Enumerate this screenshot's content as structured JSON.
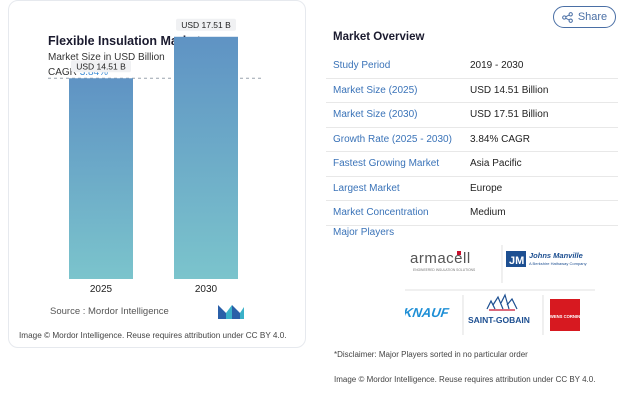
{
  "share": {
    "label": "Share",
    "icon": "share-icon"
  },
  "chart": {
    "title": "Flexible Insulation Market",
    "subtitle": "Market Size in USD Billion",
    "cagr_label": "CAGR",
    "cagr_value": "3.84%",
    "source": "Source :  Mordor Intelligence",
    "copyright": "Image © Mordor Intelligence. Reuse requires attribution under CC BY 4.0."
  },
  "chart_data": {
    "type": "bar",
    "categories": [
      "2025",
      "2030"
    ],
    "values": [
      14.51,
      17.51
    ],
    "data_labels": [
      "USD 14.51 B",
      "USD 17.51 B"
    ],
    "title": "Flexible Insulation Market",
    "subtitle": "Market Size in USD Billion",
    "ylim": [
      0,
      18
    ],
    "colors": {
      "bar_top": "#5f93c4",
      "bar_bottom": "#7bc4cc"
    },
    "grid": false,
    "reference_line": "dashed line at 2025 value"
  },
  "overview": {
    "title": "Market Overview",
    "rows": [
      {
        "key": "Study Period",
        "value": "2019 - 2030"
      },
      {
        "key": "Market Size (2025)",
        "value": "USD 14.51 Billion"
      },
      {
        "key": "Market Size (2030)",
        "value": "USD 17.51 Billion"
      },
      {
        "key": "Growth Rate (2025 - 2030)",
        "value": "3.84% CAGR"
      },
      {
        "key": "Fastest Growing Market",
        "value": "Asia Pacific"
      },
      {
        "key": "Largest Market",
        "value": "Europe"
      },
      {
        "key": "Market Concentration",
        "value": "Medium"
      }
    ],
    "players_label": "Major Players",
    "players": {
      "armacell": "armacell",
      "armacell_tag": "ENGINEERED INSULATION SOLUTIONS",
      "johns_manville": "Johns Manville",
      "johns_manville_tag": "A Berkshire Hathaway Company",
      "knauf": "KNAUF",
      "saint_gobain": "SAINT-GOBAIN",
      "owens_corning": "OWENS CORNING"
    },
    "disclaimer": "*Disclaimer: Major Players sorted in no particular order",
    "copyright": "Image © Mordor Intelligence. Reuse requires attribution under CC BY 4.0."
  }
}
